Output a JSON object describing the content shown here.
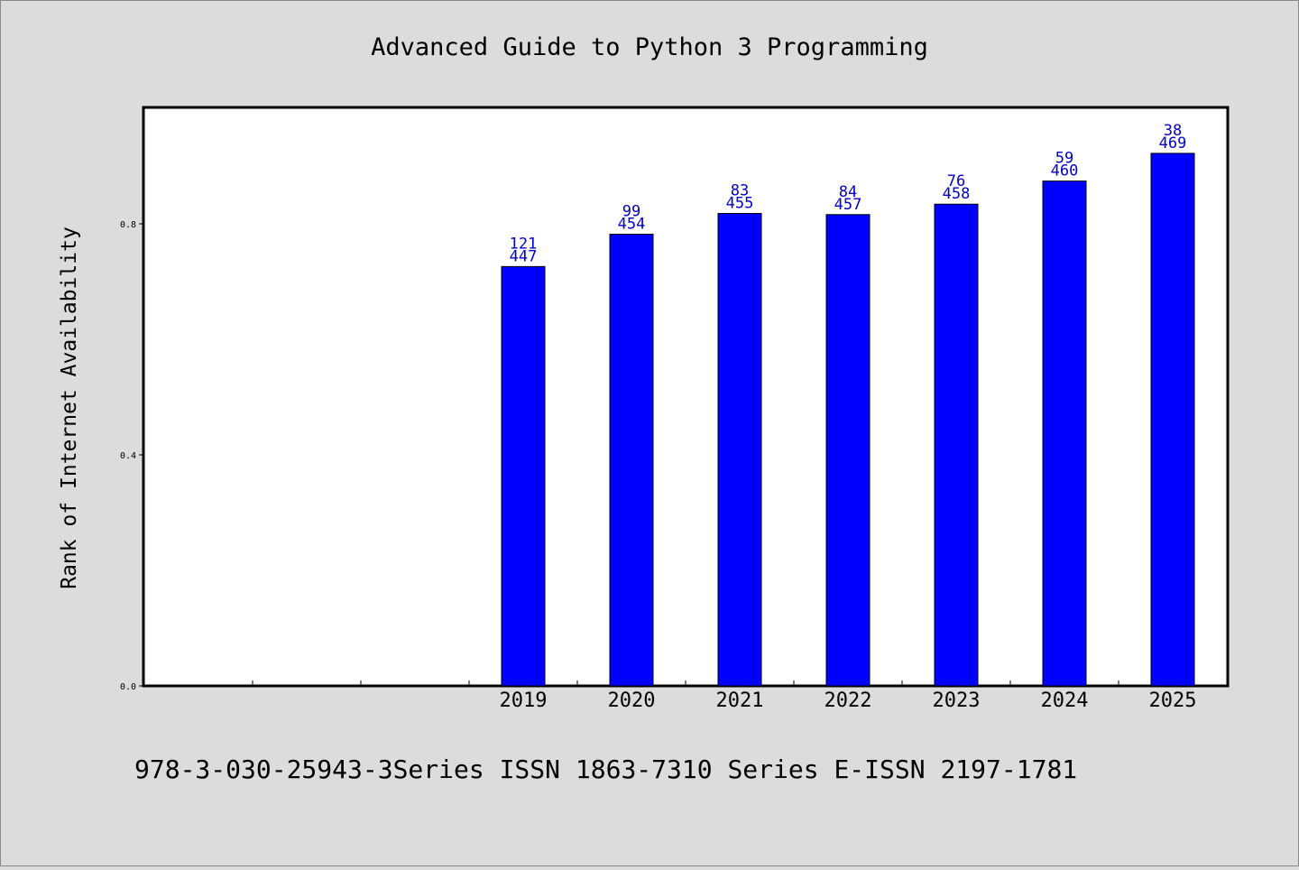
{
  "page": {
    "background": "#dcdcdc",
    "footer_text": "978-3-030-25943-3Series ISSN 1863-7310 Series E-ISSN 2197-1781"
  },
  "chart_data": {
    "type": "bar",
    "title": "Advanced Guide to Python 3 Programming",
    "xlabel": "",
    "ylabel": "Rank of Internet Availability",
    "ylim": [
      0,
      1.0
    ],
    "yticks": [
      0.0,
      0.4,
      0.8
    ],
    "ytick_labels": [
      "0.0",
      "0.4",
      "0.8"
    ],
    "categories": [
      "",
      "",
      "",
      "2019",
      "2020",
      "2021",
      "2022",
      "2023",
      "2024",
      "2025"
    ],
    "values": [
      null,
      null,
      null,
      0.726,
      0.782,
      0.818,
      0.816,
      0.834,
      0.874,
      0.922
    ],
    "bar_labels_top": [
      "",
      "",
      "",
      "121",
      "99",
      "83",
      "84",
      "76",
      "59",
      "38"
    ],
    "bar_labels_bottom": [
      "",
      "",
      "",
      "447",
      "454",
      "455",
      "457",
      "458",
      "460",
      "469"
    ],
    "bar_color": "#0000ff",
    "label_color": "#0000cc",
    "grid": false,
    "legend": "none"
  }
}
